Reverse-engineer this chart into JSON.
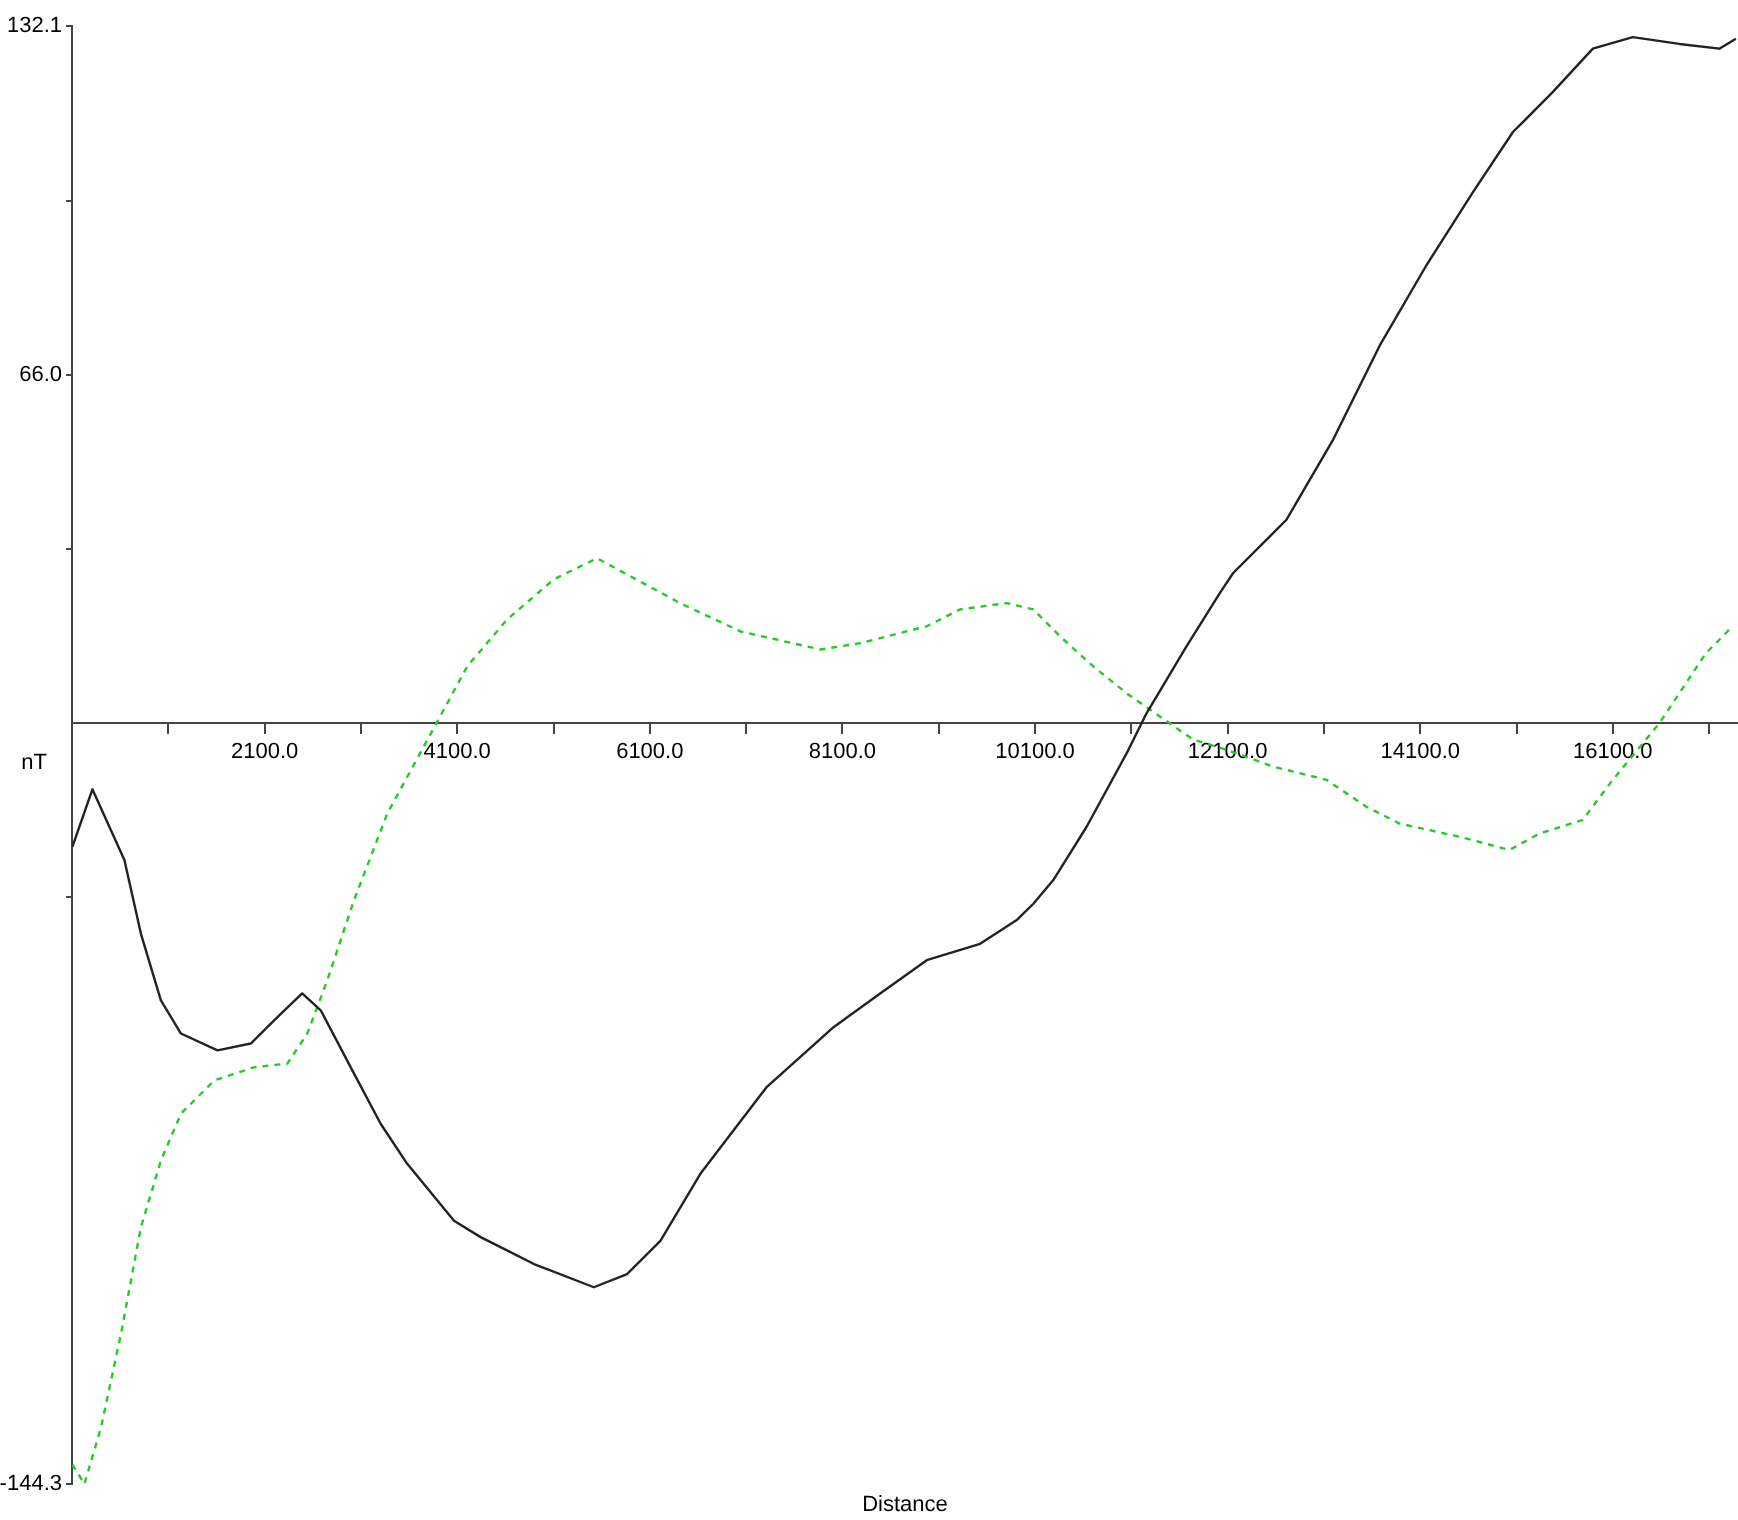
{
  "chart_data": {
    "type": "line",
    "xlabel": "Distance",
    "ylabel": "nT",
    "xlim": [
      100,
      17400
    ],
    "ylim": [
      -144.3,
      132.1
    ],
    "xticks": [
      {
        "value": 1100,
        "label": null
      },
      {
        "value": 2100,
        "label": "2100.0"
      },
      {
        "value": 3100,
        "label": null
      },
      {
        "value": 4100,
        "label": "4100.0"
      },
      {
        "value": 5100,
        "label": null
      },
      {
        "value": 6100,
        "label": "6100.0"
      },
      {
        "value": 7100,
        "label": null
      },
      {
        "value": 8100,
        "label": "8100.0"
      },
      {
        "value": 9100,
        "label": null
      },
      {
        "value": 10100,
        "label": "10100.0"
      },
      {
        "value": 11100,
        "label": null
      },
      {
        "value": 12100,
        "label": "12100.0"
      },
      {
        "value": 13100,
        "label": null
      },
      {
        "value": 14100,
        "label": "14100.0"
      },
      {
        "value": 15100,
        "label": null
      },
      {
        "value": 16100,
        "label": "16100.0"
      },
      {
        "value": 17100,
        "label": null
      }
    ],
    "yticks": [
      -144.3,
      {
        "value": -33,
        "label": null
      },
      {
        "value": 33,
        "label": null
      },
      {
        "value": 66,
        "label": "66.0"
      },
      {
        "value": 99,
        "label": null
      },
      132.1
    ],
    "grid": false,
    "legend": false,
    "marker": "none",
    "series": [
      {
        "color": "#222222",
        "line_style": "solid",
        "x": [
          104,
          312,
          644,
          816,
          1023,
          1231,
          1611,
          1957,
          2199,
          2490,
          2683,
          3029,
          3305,
          3581,
          4067,
          4343,
          4897,
          5519,
          5864,
          6210,
          6625,
          7316,
          8008,
          8492,
          8976,
          9530,
          9910,
          10083,
          10290,
          10636,
          11051,
          11258,
          11673,
          12019,
          12158,
          12711,
          13196,
          13679,
          14163,
          14648,
          15063,
          15478,
          15893,
          16307,
          16791,
          17206,
          17378
        ],
        "values": [
          -23.5,
          -12.6,
          -26,
          -40,
          -52.6,
          -58.9,
          -62.1,
          -60.8,
          -56.4,
          -51.3,
          -54.5,
          -66.5,
          -76,
          -83.6,
          -94.4,
          -97.5,
          -102.6,
          -107,
          -104.5,
          -98.2,
          -85.5,
          -69,
          -57.7,
          -51.3,
          -45,
          -41.9,
          -37.4,
          -34.3,
          -29.8,
          -19.7,
          -5.8,
          1.8,
          14.5,
          24.6,
          28.4,
          38.5,
          53.7,
          71.5,
          86.7,
          100.6,
          112,
          119.6,
          127.8,
          130,
          128.7,
          127.8,
          129.7
        ]
      },
      {
        "color": "#22cc22",
        "line_style": "dashed",
        "x": [
          104,
          229,
          401,
          608,
          816,
          1023,
          1231,
          1577,
          1992,
          2336,
          2544,
          2751,
          3029,
          3374,
          3893,
          4204,
          4619,
          5104,
          5552,
          6424,
          7046,
          7874,
          8285,
          8976,
          9322,
          9806,
          10083,
          10359,
          10705,
          11051,
          11397,
          11743,
          12089,
          12573,
          13126,
          13541,
          13886,
          14509,
          15027,
          15338,
          15788,
          16100,
          16583,
          17067,
          17344
        ],
        "values": [
          -140.6,
          -144.3,
          -133.6,
          -115.9,
          -95.6,
          -83,
          -74.1,
          -67.8,
          -65.3,
          -64.6,
          -58.9,
          -48.8,
          -33.6,
          -17.2,
          0.2,
          10.7,
          19.6,
          27.2,
          31.2,
          22.6,
          17.3,
          13.9,
          15.1,
          18.3,
          21.5,
          22.7,
          21.5,
          16.4,
          10.7,
          5.6,
          1.2,
          -3.2,
          -5.1,
          -8.3,
          -10.8,
          -15.9,
          -19.1,
          -21.6,
          -24.1,
          -21,
          -18.4,
          -10.8,
          -0.1,
          13.2,
          18.3
        ]
      }
    ]
  }
}
